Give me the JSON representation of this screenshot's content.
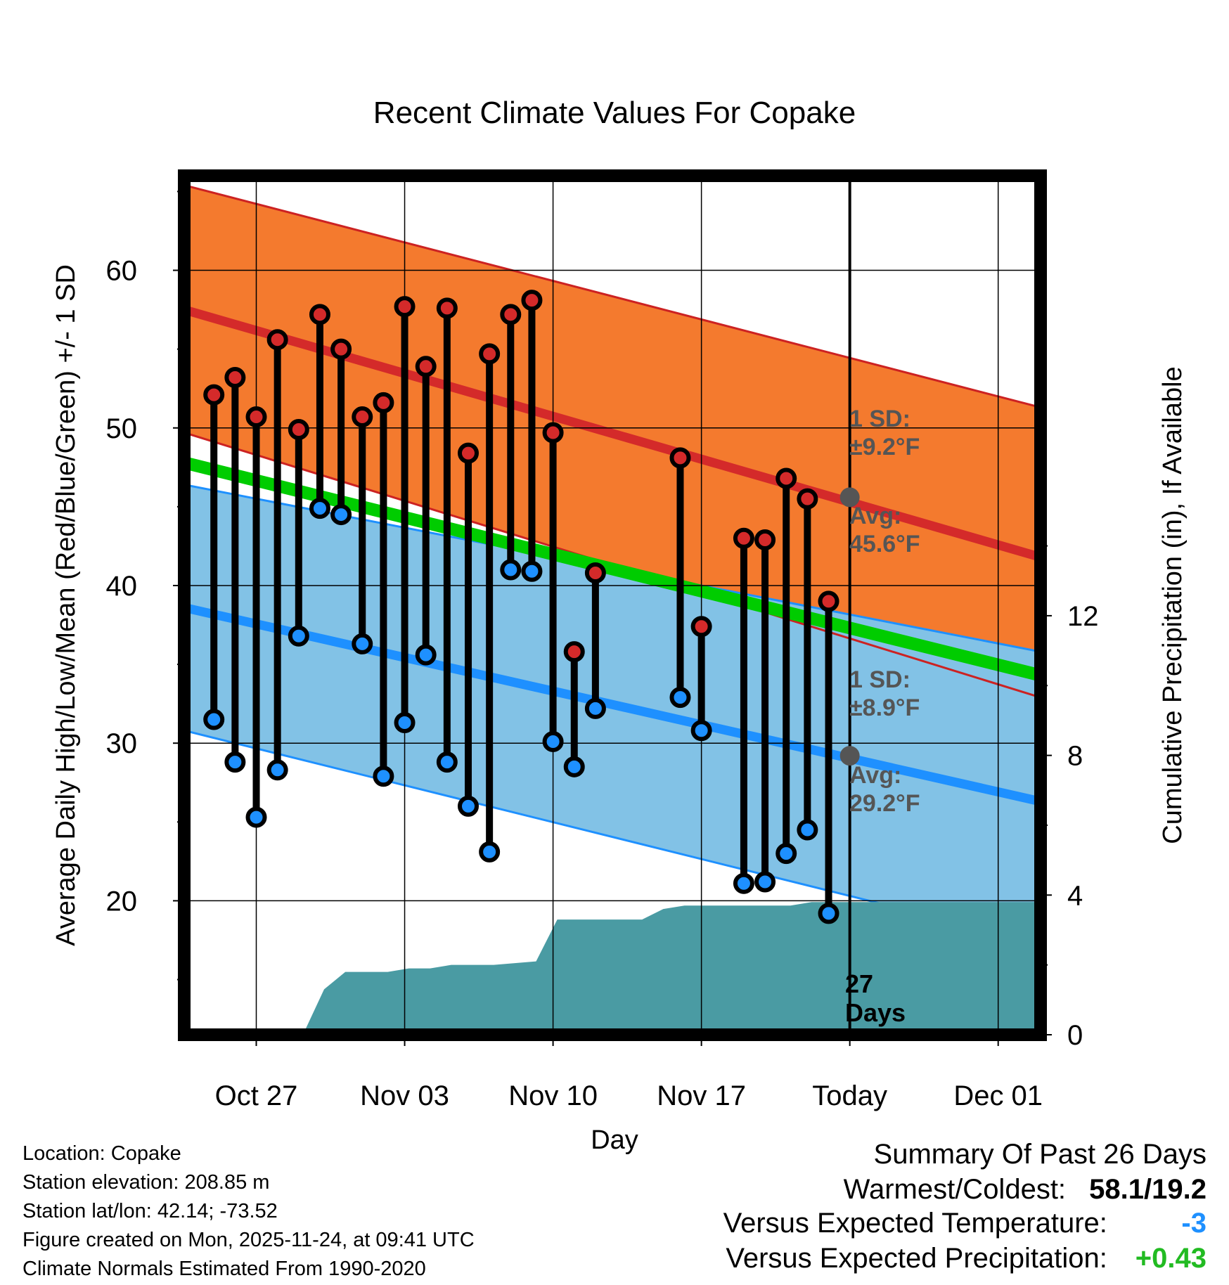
{
  "chart_data": {
    "type": "line",
    "title": "Recent Climate Values For Copake",
    "xlabel": "Day",
    "ylabel_left": "Average Daily High/Low/Mean (Red/Blue/Green) +/- 1 SD",
    "ylabel_right": "Cumulative Precipitation (in), If Available",
    "ylim_left": [
      11.5,
      66
    ],
    "ylim_right": [
      0,
      24.6
    ],
    "x_range_days": [
      -3.4,
      37.0
    ],
    "left_ticks": [
      "20",
      "30",
      "40",
      "50",
      "60"
    ],
    "right_ticks": [
      "0",
      "4",
      "8",
      "12"
    ],
    "x_tick_labels": [
      {
        "day": 0,
        "label": "Oct 27"
      },
      {
        "day": 7,
        "label": "Nov 03"
      },
      {
        "day": 14,
        "label": "Nov 10"
      },
      {
        "day": 21,
        "label": "Nov 17"
      },
      {
        "day": 28,
        "label": "Today"
      },
      {
        "day": 35,
        "label": "Dec 01"
      }
    ],
    "normals": {
      "high_avg": [
        57.5,
        41.8
      ],
      "high_sd_upper": [
        65.4,
        51.3
      ],
      "high_sd_lower": [
        49.7,
        32.9
      ],
      "low_avg": [
        38.6,
        26.3
      ],
      "low_sd_upper": [
        46.4,
        35.8
      ],
      "low_sd_lower": [
        30.8,
        17.3
      ],
      "mean_avg": [
        47.8,
        34.3
      ]
    },
    "daily_obs": {
      "day": [
        -2,
        -1,
        0,
        1,
        2,
        3,
        4,
        5,
        6,
        7,
        8,
        9,
        10,
        11,
        12,
        13,
        14,
        15,
        16,
        20,
        21,
        23,
        24,
        25,
        26,
        27
      ],
      "high": [
        52.1,
        53.2,
        50.7,
        55.6,
        49.9,
        57.2,
        55.0,
        50.7,
        51.6,
        57.7,
        53.9,
        57.6,
        48.4,
        54.7,
        57.2,
        58.1,
        49.7,
        35.8,
        40.8,
        48.1,
        37.4,
        43.0,
        42.9,
        46.8,
        45.5,
        39.0
      ],
      "low": [
        31.5,
        28.8,
        25.3,
        28.3,
        36.8,
        44.9,
        44.5,
        36.3,
        27.9,
        31.3,
        35.6,
        28.8,
        26.0,
        23.1,
        41.0,
        40.9,
        30.1,
        28.5,
        32.2,
        32.9,
        30.8,
        21.1,
        21.2,
        23.0,
        24.5,
        19.2
      ]
    },
    "precip_cumulative": {
      "day": [
        -3.4,
        2.2,
        3.2,
        4.2,
        6.2,
        7.2,
        8.2,
        9.2,
        11.2,
        13.2,
        14.2,
        15.2,
        18.2,
        19.2,
        20.2,
        21.2,
        25.2,
        26.2,
        28.0,
        37.0
      ],
      "value": [
        0,
        0,
        1.3,
        1.8,
        1.8,
        1.9,
        1.9,
        2.0,
        2.0,
        2.1,
        3.3,
        3.3,
        3.3,
        3.6,
        3.7,
        3.7,
        3.7,
        3.8,
        3.8,
        3.8
      ]
    },
    "annotations": {
      "high_sd_line1": "1 SD:",
      "high_sd_line2": "±9.2°F",
      "high_avg_line1": "Avg:",
      "high_avg_line2": "45.6°F",
      "low_sd_line1": "1 SD:",
      "low_sd_line2": "±8.9°F",
      "low_avg_line1": "Avg:",
      "low_avg_line2": "29.2°F",
      "today_high_avg": 45.6,
      "today_low_avg": 29.2,
      "days_line1": "27",
      "days_line2": "Days"
    },
    "colors": {
      "high_band": "#f47a2e",
      "high_line": "#d42a2a",
      "low_band": "#82c2e6",
      "low_line": "#1e90ff",
      "mean_line": "#00cc00",
      "overlap": "#8b1010",
      "precip": "#4a9ba3",
      "marker_high": "#d42a2a",
      "marker_low": "#1e90ff"
    }
  },
  "info": {
    "location": "Location: Copake",
    "elevation": "Station elevation: 208.85 m",
    "latlon": "Station lat/lon: 42.14; -73.52",
    "created": "Figure created on Mon, 2025-11-24, at 09:41 UTC",
    "normals": "Climate Normals Estimated From 1990-2020"
  },
  "summary": {
    "title": "Summary Of Past 26 Days",
    "warm_cold_label": "Warmest/Coldest:",
    "warm_cold_value": "58.1/19.2",
    "temp_label": "Versus Expected Temperature:",
    "temp_value": "-3",
    "temp_color": "#1e90ff",
    "precip_label": "Versus Expected Precipitation:",
    "precip_value": "+0.43",
    "precip_color": "#22bb22"
  }
}
